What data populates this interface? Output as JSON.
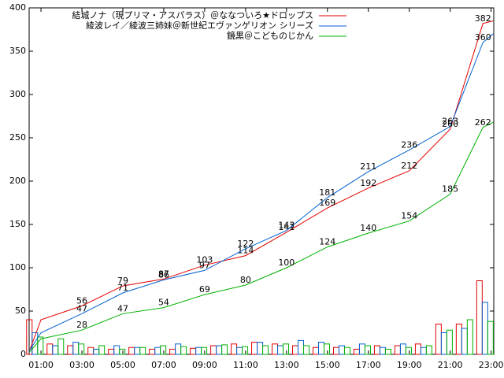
{
  "chart_data": {
    "type": "line",
    "xlim": [
      0.42,
      23.13
    ],
    "xticks": [
      {
        "value": 1,
        "label": "01:00"
      },
      {
        "value": 3,
        "label": "03:00"
      },
      {
        "value": 5,
        "label": "05:00"
      },
      {
        "value": 7,
        "label": "07:00"
      },
      {
        "value": 9,
        "label": "09:00"
      },
      {
        "value": 11,
        "label": "11:00"
      },
      {
        "value": 13,
        "label": "13:00"
      },
      {
        "value": 15,
        "label": "15:00"
      },
      {
        "value": 17,
        "label": "17:00"
      },
      {
        "value": 19,
        "label": "19:00"
      },
      {
        "value": 21,
        "label": "21:00"
      },
      {
        "value": 23,
        "label": "23:00"
      }
    ],
    "ylim": [
      0,
      400
    ],
    "yticks": [
      0,
      50,
      100,
      150,
      200,
      250,
      300,
      350,
      400
    ],
    "legend": "top-left",
    "series": [
      {
        "name": "結城ノナ（現プリマ・アスパラス）＠ななついろ★ドロップス",
        "color": "#e00000",
        "x": [
          0.45,
          1,
          3,
          5,
          7,
          9,
          11,
          13,
          15,
          17,
          19,
          21,
          22.6,
          23.1
        ],
        "values": [
          5,
          40,
          56,
          79,
          87,
          103,
          114,
          141,
          169,
          192,
          212,
          260,
          382,
          385
        ],
        "value_labels": [
          null,
          null,
          "56",
          "79",
          "87",
          "103",
          "114",
          "141",
          "169",
          "192",
          "212",
          "260",
          "382",
          null
        ]
      },
      {
        "name": "綾波レイ／綾波三姉妹＠新世紀エヴァンゲリオン シリーズ",
        "color": "#0060d0",
        "x": [
          0.45,
          1,
          3,
          5,
          7,
          9,
          11,
          13,
          15,
          17,
          19,
          21,
          22.6,
          23.1
        ],
        "values": [
          5,
          25,
          47,
          71,
          86,
          97,
          122,
          143,
          181,
          211,
          236,
          263,
          360,
          370
        ],
        "value_labels": [
          null,
          null,
          "47",
          "71",
          "86",
          "97",
          "122",
          "143",
          "181",
          "211",
          "236",
          "263",
          "360",
          null
        ]
      },
      {
        "name": "鏡黒＠こどものじかん",
        "color": "#00b000",
        "x": [
          0.45,
          1,
          3,
          5,
          7,
          9,
          11,
          13,
          15,
          17,
          19,
          21,
          22.6,
          23.1
        ],
        "values": [
          3,
          18,
          28,
          47,
          54,
          69,
          80,
          100,
          124,
          140,
          154,
          185,
          262,
          268
        ],
        "value_labels": [
          null,
          null,
          "28",
          "47",
          "54",
          "69",
          "80",
          "100",
          "124",
          "140",
          "154",
          "185",
          "262",
          null
        ]
      }
    ],
    "bars": {
      "x": [
        0.7,
        1.7,
        2.7,
        3.7,
        4.7,
        5.7,
        6.7,
        7.7,
        8.7,
        9.7,
        10.7,
        11.7,
        12.7,
        13.7,
        14.7,
        15.7,
        16.7,
        17.7,
        18.7,
        19.7,
        20.7,
        21.7,
        22.7
      ],
      "series": [
        [
          40,
          12,
          10,
          8,
          6,
          8,
          6,
          6,
          7,
          10,
          12,
          14,
          12,
          10,
          8,
          8,
          6,
          10,
          10,
          12,
          35,
          35,
          85
        ],
        [
          25,
          10,
          14,
          6,
          10,
          8,
          8,
          12,
          8,
          10,
          8,
          14,
          10,
          16,
          14,
          10,
          12,
          8,
          12,
          8,
          25,
          30,
          60
        ],
        [
          20,
          18,
          12,
          10,
          6,
          8,
          10,
          9,
          8,
          11,
          9,
          10,
          12,
          10,
          12,
          8,
          10,
          6,
          8,
          10,
          28,
          40,
          38
        ]
      ]
    }
  }
}
